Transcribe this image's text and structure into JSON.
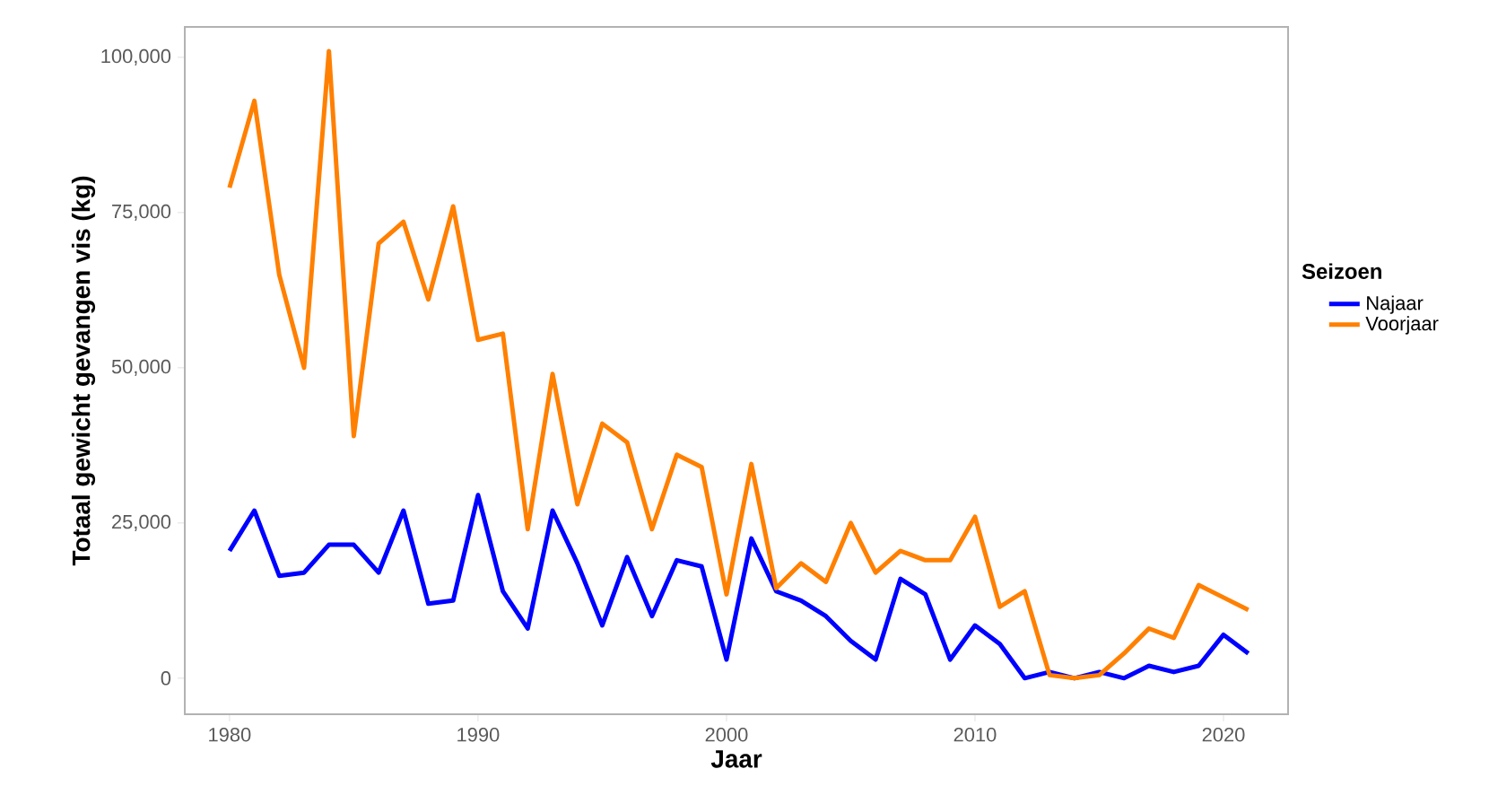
{
  "chart_data": {
    "type": "line",
    "xlabel": "Jaar",
    "ylabel": "Totaal gewicht gevangen vis (kg)",
    "legend_title": "Seizoen",
    "legend": "right",
    "grid": false,
    "line_style": "solid",
    "x": [
      1980,
      1981,
      1982,
      1983,
      1984,
      1985,
      1986,
      1987,
      1988,
      1989,
      1990,
      1991,
      1992,
      1993,
      1994,
      1995,
      1996,
      1997,
      1998,
      1999,
      2000,
      2001,
      2002,
      2003,
      2004,
      2005,
      2006,
      2007,
      2008,
      2009,
      2010,
      2011,
      2012,
      2013,
      2014,
      2015,
      2016,
      2017,
      2018,
      2019,
      2020,
      2021
    ],
    "series": [
      {
        "name": "Najaar",
        "color": "#0000ff",
        "values": [
          20500,
          27000,
          16500,
          17000,
          21500,
          21500,
          17000,
          27000,
          12000,
          12500,
          29500,
          14000,
          8000,
          27000,
          18500,
          8500,
          19500,
          10000,
          19000,
          18000,
          3000,
          22500,
          14000,
          12500,
          10000,
          6000,
          3000,
          16000,
          13500,
          3000,
          8500,
          5500,
          0,
          1000,
          0,
          1000,
          0,
          2000,
          1000,
          2000,
          7000,
          4000
        ]
      },
      {
        "name": "Voorjaar",
        "color": "#ff8000",
        "values": [
          79000,
          93000,
          65000,
          50000,
          101000,
          39000,
          70000,
          73500,
          61000,
          76000,
          54500,
          55500,
          24000,
          49000,
          28000,
          41000,
          38000,
          24000,
          36000,
          34000,
          13500,
          34500,
          14500,
          18500,
          15500,
          25000,
          17000,
          20500,
          19000,
          19000,
          26000,
          11500,
          14000,
          500,
          0,
          500,
          4000,
          8000,
          6500,
          15000,
          13000,
          11000
        ]
      }
    ],
    "xlim": [
      1978.2,
      2022.6
    ],
    "ylim": [
      -5800,
      104900
    ],
    "xticks": [
      1980,
      1990,
      2000,
      2010,
      2020
    ],
    "yticks": [
      {
        "value": 0,
        "label": "0"
      },
      {
        "value": 25000,
        "label": "25,000"
      },
      {
        "value": 50000,
        "label": "50,000"
      },
      {
        "value": 75000,
        "label": "75,000"
      },
      {
        "value": 100000,
        "label": "100,000"
      }
    ]
  }
}
